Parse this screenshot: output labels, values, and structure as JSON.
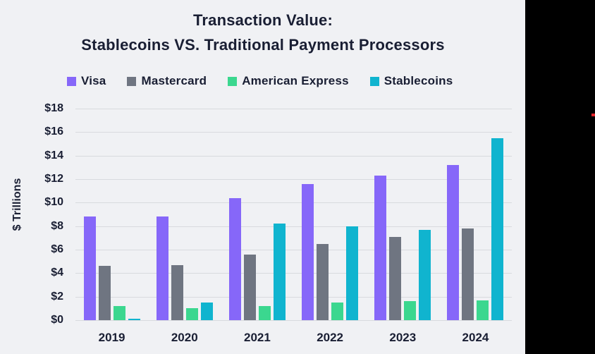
{
  "chart_data": {
    "type": "bar",
    "title_lines": [
      "Transaction Value:",
      "Stablecoins VS. Traditional Payment Processors"
    ],
    "ylabel": "$ Trillions",
    "xlabel": "",
    "categories": [
      "2019",
      "2020",
      "2021",
      "2022",
      "2023",
      "2024"
    ],
    "series": [
      {
        "name": "Visa",
        "color": "#8667f9",
        "values": [
          8.8,
          8.8,
          10.4,
          11.6,
          12.3,
          13.2
        ]
      },
      {
        "name": "Mastercard",
        "color": "#6f7581",
        "values": [
          4.6,
          4.7,
          5.6,
          6.5,
          7.1,
          7.8
        ]
      },
      {
        "name": "American Express",
        "color": "#3bd78f",
        "values": [
          1.2,
          1.0,
          1.2,
          1.5,
          1.6,
          1.7
        ]
      },
      {
        "name": "Stablecoins",
        "color": "#10b4cf",
        "values": [
          0.1,
          1.5,
          8.2,
          8.0,
          7.7,
          15.5
        ]
      }
    ],
    "ylim": [
      0,
      18
    ],
    "ytick_step": 2,
    "yticks": [
      "$0",
      "$2",
      "$4",
      "$6",
      "$8",
      "$10",
      "$12",
      "$14",
      "$16",
      "$18"
    ],
    "grid": true,
    "legend_position": "top",
    "colors": {
      "background": "#f0f1f4",
      "text": "#191e33",
      "gridline": "#d8dade"
    }
  },
  "decorations": {
    "right_band_color": "#000000",
    "red_marker_color": "#e3242b"
  }
}
